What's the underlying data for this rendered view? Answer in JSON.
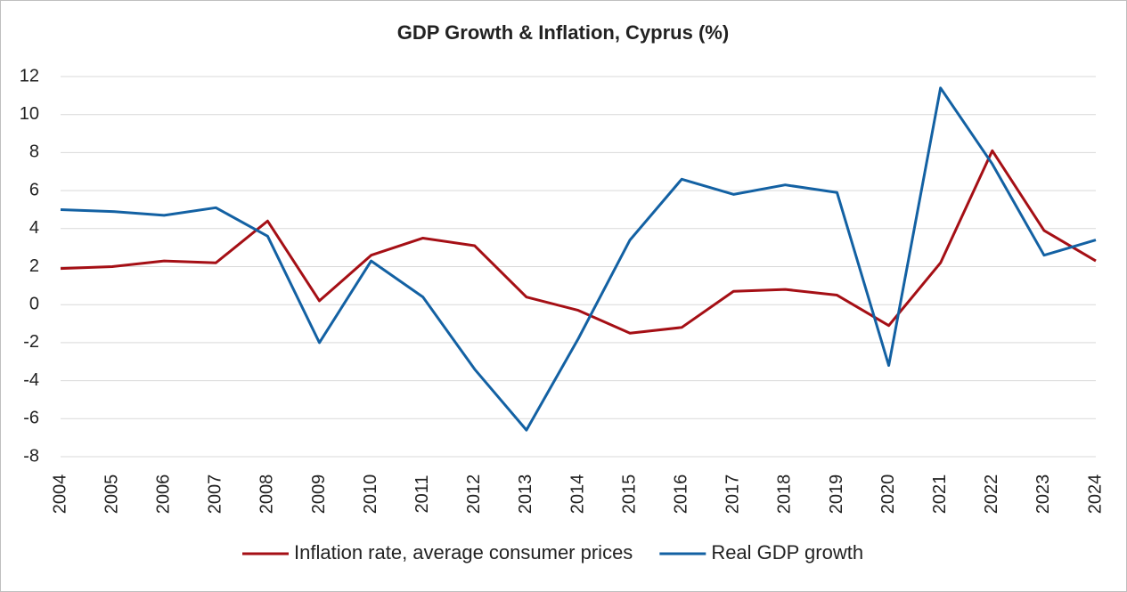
{
  "chart_data": {
    "type": "line",
    "title": "GDP Growth & Inflation, Cyprus (%)",
    "categories": [
      "2004",
      "2005",
      "2006",
      "2007",
      "2008",
      "2009",
      "2010",
      "2011",
      "2012",
      "2013",
      "2014",
      "2015",
      "2016",
      "2017",
      "2018",
      "2019",
      "2020",
      "2021",
      "2022",
      "2023",
      "2024"
    ],
    "series": [
      {
        "name": "Inflation rate, average consumer prices",
        "color": "#a50f15",
        "values": [
          1.9,
          2.0,
          2.3,
          2.2,
          4.4,
          0.2,
          2.6,
          3.5,
          3.1,
          0.4,
          -0.3,
          -1.5,
          -1.2,
          0.7,
          0.8,
          0.5,
          -1.1,
          2.2,
          8.1,
          3.9,
          2.3
        ]
      },
      {
        "name": "Real GDP growth",
        "color": "#1361a3",
        "values": [
          5.0,
          4.9,
          4.7,
          5.1,
          3.6,
          -2.0,
          2.3,
          0.4,
          -3.4,
          -6.6,
          -1.8,
          3.4,
          6.6,
          5.8,
          6.3,
          5.9,
          -3.2,
          11.4,
          7.4,
          2.6,
          3.4
        ]
      }
    ],
    "ylim": [
      -8,
      12
    ],
    "yticks": [
      -8,
      -6,
      -4,
      -2,
      0,
      2,
      4,
      6,
      8,
      10,
      12
    ],
    "grid": true,
    "legend": "bottom"
  }
}
